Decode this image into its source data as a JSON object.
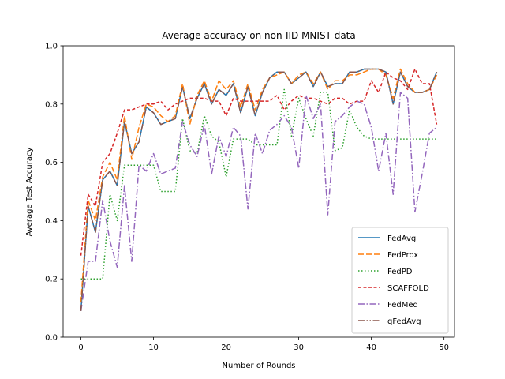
{
  "chart_data": {
    "type": "line",
    "title": "Average accuracy on non-IID MNIST data",
    "xlabel": "Number of Rounds",
    "ylabel": "Average Test Accuracy",
    "xlim": [
      -2.45,
      51.45
    ],
    "ylim": [
      0,
      1
    ],
    "xticks": [
      0,
      10,
      20,
      30,
      40,
      50
    ],
    "yticks": [
      0.0,
      0.2,
      0.4,
      0.6,
      0.8,
      1.0
    ],
    "xtick_labels": [
      "0",
      "10",
      "20",
      "30",
      "40",
      "50"
    ],
    "ytick_labels": [
      "0.0",
      "0.2",
      "0.4",
      "0.6",
      "0.8",
      "1.0"
    ],
    "grid": false,
    "legend_position": "lower-right",
    "x": [
      0,
      1,
      2,
      3,
      4,
      5,
      6,
      7,
      8,
      9,
      10,
      11,
      12,
      13,
      14,
      15,
      16,
      17,
      18,
      19,
      20,
      21,
      22,
      23,
      24,
      25,
      26,
      27,
      28,
      29,
      30,
      31,
      32,
      33,
      34,
      35,
      36,
      37,
      38,
      39,
      40,
      41,
      42,
      43,
      44,
      45,
      46,
      47,
      48,
      49
    ],
    "series": [
      {
        "name": "FedAvg",
        "color": "#1f77b4",
        "dash": "solid",
        "values": [
          0.09,
          0.45,
          0.36,
          0.54,
          0.57,
          0.52,
          0.74,
          0.63,
          0.67,
          0.79,
          0.77,
          0.73,
          0.74,
          0.75,
          0.86,
          0.75,
          0.82,
          0.87,
          0.8,
          0.85,
          0.83,
          0.87,
          0.77,
          0.86,
          0.76,
          0.84,
          0.89,
          0.91,
          0.91,
          0.87,
          0.89,
          0.91,
          0.86,
          0.91,
          0.86,
          0.87,
          0.87,
          0.91,
          0.91,
          0.92,
          0.92,
          0.92,
          0.91,
          0.8,
          0.91,
          0.86,
          0.84,
          0.84,
          0.85,
          0.91
        ]
      },
      {
        "name": "FedProx",
        "color": "#ff7f0e",
        "dash": "7,3",
        "values": [
          0.12,
          0.47,
          0.4,
          0.55,
          0.6,
          0.54,
          0.76,
          0.61,
          0.72,
          0.8,
          0.79,
          0.76,
          0.74,
          0.76,
          0.87,
          0.73,
          0.83,
          0.88,
          0.81,
          0.88,
          0.85,
          0.88,
          0.79,
          0.87,
          0.78,
          0.85,
          0.89,
          0.9,
          0.91,
          0.87,
          0.9,
          0.91,
          0.87,
          0.91,
          0.85,
          0.88,
          0.88,
          0.9,
          0.9,
          0.91,
          0.92,
          0.92,
          0.9,
          0.82,
          0.92,
          0.87,
          0.84,
          0.84,
          0.85,
          0.9
        ]
      },
      {
        "name": "FedPD",
        "color": "#2ca02c",
        "dash": "1.5,2.5",
        "values": [
          0.2,
          0.2,
          0.2,
          0.2,
          0.49,
          0.4,
          0.59,
          0.59,
          0.59,
          0.59,
          0.59,
          0.5,
          0.5,
          0.5,
          0.75,
          0.64,
          0.63,
          0.76,
          0.69,
          0.67,
          0.55,
          0.68,
          0.68,
          0.68,
          0.66,
          0.66,
          0.66,
          0.66,
          0.85,
          0.69,
          0.82,
          0.75,
          0.69,
          0.84,
          0.84,
          0.64,
          0.65,
          0.78,
          0.72,
          0.69,
          0.68,
          0.68,
          0.68,
          0.68,
          0.68,
          0.68,
          0.68,
          0.68,
          0.68,
          0.68
        ]
      },
      {
        "name": "SCAFFOLD",
        "color": "#d62728",
        "dash": "4,2.5",
        "values": [
          0.28,
          0.49,
          0.45,
          0.6,
          0.63,
          0.7,
          0.78,
          0.78,
          0.79,
          0.8,
          0.8,
          0.81,
          0.78,
          0.8,
          0.81,
          0.82,
          0.82,
          0.82,
          0.81,
          0.81,
          0.76,
          0.82,
          0.81,
          0.81,
          0.81,
          0.81,
          0.81,
          0.83,
          0.78,
          0.81,
          0.83,
          0.82,
          0.82,
          0.81,
          0.8,
          0.82,
          0.82,
          0.8,
          0.81,
          0.81,
          0.88,
          0.84,
          0.91,
          0.89,
          0.88,
          0.85,
          0.92,
          0.87,
          0.87,
          0.73
        ]
      },
      {
        "name": "FedMed",
        "color": "#9467bd",
        "dash": "8,2.5,1.5,2.5",
        "values": [
          0.09,
          0.26,
          0.26,
          0.47,
          0.33,
          0.24,
          0.52,
          0.26,
          0.59,
          0.57,
          0.63,
          0.56,
          0.57,
          0.58,
          0.74,
          0.66,
          0.62,
          0.73,
          0.56,
          0.69,
          0.62,
          0.72,
          0.69,
          0.44,
          0.7,
          0.63,
          0.71,
          0.73,
          0.76,
          0.72,
          0.58,
          0.83,
          0.75,
          0.8,
          0.42,
          0.74,
          0.76,
          0.79,
          0.81,
          0.8,
          0.72,
          0.57,
          0.7,
          0.49,
          0.84,
          0.82,
          0.43,
          0.56,
          0.7,
          0.72
        ]
      },
      {
        "name": "qFedAvg",
        "color": "#8c564b",
        "dash": "8,2.5,1.5,2.5,1.5,2.5",
        "values": [
          0.09,
          0.45,
          0.36,
          0.54,
          0.57,
          0.52,
          0.74,
          0.63,
          0.67,
          0.79,
          0.77,
          0.73,
          0.74,
          0.75,
          0.86,
          0.75,
          0.82,
          0.87,
          0.8,
          0.85,
          0.83,
          0.87,
          0.77,
          0.86,
          0.76,
          0.84,
          0.89,
          0.91,
          0.91,
          0.87,
          0.89,
          0.91,
          0.86,
          0.91,
          0.86,
          0.87,
          0.87,
          0.91,
          0.91,
          0.92,
          0.92,
          0.92,
          0.91,
          0.8,
          0.91,
          0.86,
          0.84,
          0.84,
          0.85,
          0.91
        ]
      }
    ]
  }
}
